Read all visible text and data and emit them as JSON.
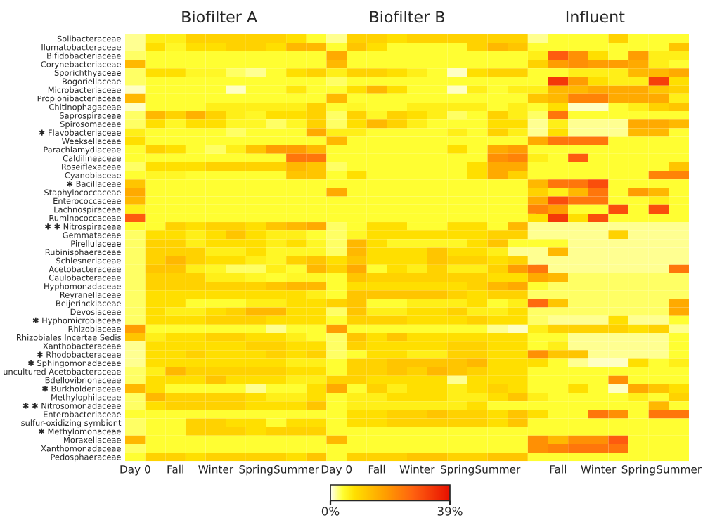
{
  "chart_data": {
    "type": "heatmap",
    "clim": [
      0,
      39
    ],
    "cticks": [
      {
        "value": 0,
        "label": "0%"
      },
      {
        "value": 39,
        "label": "39%"
      }
    ],
    "annotations": [
      "Biofilter A",
      "Biofilter B",
      "Influent"
    ],
    "categories": [
      "Day 0",
      null,
      "Fall",
      null,
      "Winter",
      null,
      "Spring",
      null,
      "Summer",
      null,
      "Day 0",
      null,
      "Fall",
      null,
      "Winter",
      null,
      "Spring",
      null,
      "Summer",
      null,
      null,
      "Fall",
      null,
      "Winter",
      null,
      "Spring",
      null,
      "Summer"
    ],
    "y_categories": [
      "Solibacteraceae",
      "Ilumatobacteraceae",
      "Bifidobacteriaceae",
      "Corynebacteriaceae",
      "Sporichthyaceae",
      "Bogoriellaceae",
      "Microbacteriaceae",
      "Propionibacteriaceae",
      "Chitinophagaceae",
      "Saprospiraceae",
      "Spirosomaceae",
      "✱ Flavobacteriaceae",
      "Weeksellaceae",
      "Parachlamydiaceae",
      "Caldilineaceae",
      "Roseiflexaceae",
      "Cyanobiaceae",
      "✱ Bacillaceae",
      "Staphylococcaceae",
      "Enterococcaceae",
      "Lachnospiraceae",
      "Ruminococcaceae",
      "✱ ✱ Nitrospiraceae",
      "Gemmataceae",
      "Pirellulaceae",
      "Rubinisphaeraceae",
      "Schlesneriaceae",
      "Acetobacteraceae",
      "Caulobacteraceae",
      "Hyphomonadaceae",
      "Reyranellaceae",
      "Beijerinckiaceae",
      "Devosiaceae",
      "✱ Hyphomicrobiaceae",
      "Rhizobiaceae",
      "Rhizobiales Incertae Sedis",
      "Xanthobacteraceae",
      "✱ Rhodobacteraceae",
      "✱ Sphingomonadaceae",
      "uncultured Acetobacteraceae",
      "Bdellovibrionaceae",
      "✱ Burkholderiaceae",
      "Methylophilaceae",
      "✱ ✱ Nitrosomonadaceae",
      "Enterobacteriaceae",
      "sulfur-oxidizing symbiont",
      "✱ Methylomonaceae",
      "Moraxellaceae",
      "Xanthomonadaceae",
      "Pedosphaeraceae"
    ],
    "cells": [
      [
        2,
        6,
        6,
        10,
        10,
        10,
        10,
        10,
        8,
        4,
        2,
        10,
        10,
        8,
        10,
        10,
        10,
        10,
        10,
        10,
        2,
        4,
        4,
        4,
        10,
        4,
        4,
        4
      ],
      [
        2,
        8,
        5,
        8,
        8,
        10,
        10,
        8,
        14,
        14,
        4,
        12,
        8,
        4,
        4,
        4,
        4,
        10,
        14,
        12,
        4,
        4,
        4,
        4,
        4,
        4,
        4,
        12
      ],
      [
        3,
        4,
        4,
        4,
        4,
        4,
        4,
        4,
        4,
        4,
        16,
        4,
        4,
        4,
        4,
        4,
        4,
        4,
        4,
        4,
        6,
        28,
        20,
        8,
        4,
        18,
        6,
        6
      ],
      [
        14,
        4,
        4,
        4,
        4,
        4,
        4,
        4,
        4,
        4,
        14,
        4,
        4,
        4,
        4,
        4,
        4,
        4,
        4,
        4,
        10,
        18,
        20,
        18,
        18,
        16,
        6,
        4
      ],
      [
        3,
        8,
        8,
        5,
        5,
        3,
        2,
        4,
        8,
        10,
        6,
        10,
        10,
        8,
        6,
        4,
        1,
        8,
        10,
        10,
        4,
        4,
        6,
        6,
        6,
        14,
        14,
        16
      ],
      [
        3,
        4,
        4,
        4,
        4,
        4,
        4,
        4,
        4,
        4,
        3,
        4,
        4,
        4,
        4,
        4,
        4,
        4,
        4,
        4,
        4,
        33,
        18,
        8,
        6,
        6,
        32,
        8
      ],
      [
        1,
        4,
        4,
        4,
        4,
        1,
        4,
        4,
        7,
        4,
        4,
        8,
        14,
        8,
        4,
        4,
        1,
        6,
        4,
        6,
        6,
        14,
        14,
        16,
        16,
        16,
        12,
        10
      ],
      [
        14,
        4,
        4,
        4,
        4,
        4,
        4,
        4,
        4,
        4,
        14,
        4,
        4,
        4,
        4,
        4,
        4,
        4,
        4,
        4,
        12,
        14,
        22,
        22,
        16,
        16,
        16,
        6
      ],
      [
        1,
        4,
        4,
        4,
        6,
        6,
        6,
        6,
        6,
        10,
        4,
        5,
        4,
        4,
        6,
        6,
        6,
        6,
        4,
        6,
        4,
        8,
        1,
        1,
        4,
        6,
        10,
        12
      ],
      [
        3,
        14,
        10,
        15,
        10,
        6,
        5,
        8,
        8,
        10,
        3,
        10,
        5,
        10,
        8,
        6,
        3,
        4,
        10,
        6,
        3,
        24,
        4,
        4,
        4,
        4,
        4,
        4
      ],
      [
        3,
        8,
        5,
        8,
        8,
        5,
        5,
        3,
        5,
        10,
        3,
        8,
        14,
        10,
        6,
        4,
        4,
        4,
        8,
        8,
        2,
        6,
        2,
        2,
        2,
        16,
        16,
        14
      ],
      [
        6,
        4,
        4,
        4,
        4,
        3,
        4,
        4,
        4,
        16,
        6,
        6,
        4,
        4,
        4,
        4,
        6,
        4,
        10,
        6,
        2,
        8,
        2,
        2,
        2,
        14,
        14,
        4
      ],
      [
        8,
        4,
        4,
        4,
        4,
        4,
        4,
        4,
        4,
        4,
        14,
        4,
        4,
        4,
        4,
        4,
        4,
        4,
        4,
        4,
        16,
        24,
        24,
        24,
        4,
        4,
        4,
        4
      ],
      [
        4,
        10,
        8,
        4,
        3,
        6,
        12,
        18,
        18,
        14,
        4,
        4,
        4,
        4,
        4,
        4,
        8,
        4,
        16,
        18,
        4,
        4,
        4,
        4,
        4,
        4,
        4,
        4
      ],
      [
        4,
        4,
        4,
        4,
        4,
        4,
        4,
        4,
        24,
        24,
        4,
        4,
        4,
        4,
        4,
        4,
        4,
        4,
        20,
        22,
        6,
        4,
        28,
        4,
        4,
        4,
        4,
        4
      ],
      [
        3,
        8,
        8,
        8,
        10,
        10,
        10,
        10,
        14,
        12,
        3,
        4,
        4,
        4,
        4,
        4,
        4,
        8,
        16,
        16,
        4,
        4,
        4,
        4,
        4,
        4,
        4,
        12
      ],
      [
        4,
        5,
        5,
        4,
        4,
        4,
        4,
        4,
        12,
        12,
        4,
        8,
        4,
        4,
        4,
        4,
        4,
        8,
        16,
        10,
        4,
        4,
        4,
        4,
        4,
        4,
        22,
        22
      ],
      [
        12,
        4,
        4,
        4,
        4,
        4,
        4,
        4,
        4,
        4,
        4,
        4,
        4,
        4,
        4,
        4,
        4,
        4,
        4,
        4,
        14,
        24,
        24,
        30,
        4,
        4,
        4,
        4
      ],
      [
        16,
        4,
        4,
        4,
        4,
        4,
        4,
        4,
        4,
        4,
        16,
        4,
        4,
        4,
        4,
        4,
        4,
        4,
        4,
        4,
        10,
        6,
        14,
        24,
        4,
        18,
        14,
        4
      ],
      [
        14,
        4,
        4,
        4,
        4,
        4,
        4,
        4,
        4,
        4,
        4,
        4,
        4,
        4,
        4,
        4,
        4,
        4,
        4,
        4,
        16,
        30,
        24,
        24,
        4,
        4,
        6,
        4
      ],
      [
        6,
        4,
        4,
        4,
        4,
        4,
        4,
        4,
        4,
        4,
        4,
        4,
        4,
        4,
        4,
        4,
        4,
        4,
        4,
        4,
        22,
        18,
        4,
        4,
        30,
        4,
        30,
        4
      ],
      [
        28,
        4,
        4,
        4,
        4,
        4,
        4,
        4,
        4,
        4,
        4,
        4,
        4,
        4,
        4,
        4,
        4,
        4,
        4,
        4,
        8,
        33,
        8,
        30,
        4,
        4,
        4,
        4
      ],
      [
        4,
        4,
        10,
        8,
        10,
        10,
        8,
        12,
        14,
        16,
        3,
        4,
        8,
        8,
        4,
        4,
        8,
        8,
        4,
        14,
        2,
        2,
        2,
        2,
        2,
        2,
        2,
        2
      ],
      [
        3,
        8,
        8,
        6,
        8,
        12,
        8,
        6,
        6,
        4,
        3,
        5,
        8,
        8,
        8,
        8,
        8,
        8,
        10,
        10,
        2,
        2,
        2,
        2,
        10,
        2,
        2,
        2
      ],
      [
        3,
        10,
        10,
        6,
        8,
        8,
        8,
        6,
        8,
        5,
        3,
        14,
        8,
        5,
        5,
        5,
        5,
        8,
        12,
        4,
        4,
        4,
        2,
        2,
        2,
        2,
        2,
        2
      ],
      [
        3,
        10,
        10,
        10,
        6,
        6,
        8,
        5,
        5,
        5,
        3,
        14,
        8,
        8,
        8,
        12,
        8,
        8,
        6,
        2,
        2,
        14,
        2,
        2,
        2,
        2,
        2,
        2
      ],
      [
        3,
        10,
        14,
        10,
        8,
        8,
        6,
        5,
        10,
        12,
        8,
        12,
        8,
        8,
        8,
        12,
        10,
        10,
        8,
        10,
        2,
        2,
        2,
        2,
        2,
        2,
        2,
        2
      ],
      [
        3,
        12,
        12,
        6,
        5,
        3,
        3,
        6,
        4,
        14,
        10,
        16,
        4,
        8,
        6,
        10,
        6,
        6,
        10,
        18,
        24,
        2,
        2,
        2,
        2,
        2,
        2,
        24
      ],
      [
        3,
        10,
        10,
        10,
        6,
        6,
        5,
        4,
        5,
        5,
        4,
        12,
        10,
        10,
        10,
        10,
        10,
        10,
        8,
        8,
        16,
        14,
        3,
        3,
        3,
        3,
        3,
        3
      ],
      [
        3,
        10,
        10,
        10,
        10,
        10,
        10,
        12,
        14,
        14,
        4,
        8,
        8,
        8,
        8,
        8,
        8,
        10,
        14,
        16,
        4,
        3,
        3,
        3,
        3,
        3,
        3,
        3
      ],
      [
        3,
        8,
        8,
        8,
        8,
        8,
        8,
        8,
        8,
        6,
        4,
        12,
        12,
        12,
        12,
        12,
        10,
        8,
        10,
        10,
        3,
        3,
        3,
        3,
        3,
        3,
        3,
        3
      ],
      [
        3,
        8,
        8,
        4,
        4,
        4,
        6,
        6,
        8,
        8,
        10,
        12,
        4,
        4,
        6,
        6,
        6,
        8,
        4,
        6,
        26,
        12,
        3,
        3,
        3,
        3,
        3,
        16
      ],
      [
        3,
        8,
        6,
        6,
        8,
        10,
        14,
        14,
        8,
        8,
        3,
        12,
        6,
        6,
        8,
        8,
        10,
        6,
        6,
        8,
        3,
        3,
        3,
        3,
        3,
        3,
        3,
        16
      ],
      [
        3,
        8,
        8,
        8,
        10,
        10,
        10,
        8,
        8,
        8,
        4,
        10,
        10,
        10,
        8,
        8,
        8,
        10,
        8,
        8,
        3,
        2,
        2,
        2,
        8,
        2,
        2,
        4
      ],
      [
        18,
        4,
        4,
        4,
        4,
        4,
        4,
        2,
        4,
        4,
        18,
        4,
        4,
        4,
        4,
        4,
        4,
        4,
        2,
        1,
        6,
        10,
        10,
        10,
        10,
        8,
        10,
        2
      ],
      [
        12,
        6,
        8,
        8,
        10,
        10,
        8,
        8,
        6,
        4,
        3,
        12,
        8,
        12,
        8,
        8,
        8,
        8,
        8,
        8,
        4,
        4,
        2,
        2,
        2,
        2,
        2,
        4
      ],
      [
        2,
        8,
        8,
        8,
        8,
        8,
        10,
        10,
        8,
        8,
        3,
        10,
        8,
        8,
        8,
        8,
        10,
        10,
        8,
        8,
        4,
        6,
        2,
        2,
        2,
        2,
        2,
        4
      ],
      [
        2,
        8,
        8,
        10,
        8,
        8,
        8,
        10,
        8,
        10,
        3,
        4,
        8,
        8,
        6,
        6,
        10,
        10,
        8,
        8,
        20,
        12,
        12,
        2,
        2,
        2,
        2,
        4
      ],
      [
        2,
        8,
        8,
        8,
        8,
        8,
        8,
        8,
        6,
        6,
        4,
        10,
        10,
        12,
        12,
        12,
        12,
        14,
        8,
        8,
        8,
        4,
        2,
        1,
        1,
        8,
        4,
        6
      ],
      [
        3,
        6,
        14,
        10,
        10,
        10,
        10,
        10,
        8,
        8,
        4,
        10,
        10,
        12,
        10,
        14,
        12,
        10,
        8,
        8,
        4,
        4,
        4,
        4,
        4,
        4,
        4,
        4
      ],
      [
        3,
        8,
        8,
        8,
        12,
        8,
        8,
        8,
        6,
        6,
        10,
        10,
        8,
        8,
        8,
        8,
        2,
        8,
        8,
        8,
        4,
        4,
        4,
        4,
        20,
        4,
        4,
        4
      ],
      [
        14,
        8,
        4,
        4,
        4,
        4,
        2,
        4,
        4,
        8,
        16,
        4,
        10,
        6,
        8,
        8,
        6,
        8,
        10,
        8,
        4,
        4,
        8,
        4,
        1,
        16,
        12,
        8
      ],
      [
        3,
        14,
        10,
        10,
        10,
        10,
        8,
        6,
        6,
        8,
        4,
        6,
        6,
        8,
        8,
        8,
        6,
        6,
        8,
        12,
        6,
        4,
        4,
        4,
        4,
        6,
        4,
        10
      ],
      [
        3,
        8,
        10,
        10,
        10,
        10,
        8,
        8,
        8,
        12,
        4,
        6,
        6,
        6,
        6,
        6,
        6,
        8,
        4,
        4,
        4,
        4,
        4,
        4,
        4,
        4,
        14,
        4
      ],
      [
        4,
        4,
        4,
        4,
        4,
        4,
        4,
        4,
        4,
        4,
        4,
        8,
        8,
        10,
        10,
        12,
        10,
        10,
        8,
        12,
        8,
        4,
        4,
        24,
        20,
        4,
        24,
        24
      ],
      [
        3,
        4,
        4,
        10,
        10,
        8,
        8,
        4,
        8,
        8,
        4,
        8,
        8,
        10,
        10,
        10,
        10,
        10,
        8,
        12,
        4,
        4,
        4,
        4,
        4,
        4,
        4,
        4
      ],
      [
        3,
        4,
        4,
        10,
        10,
        10,
        8,
        10,
        10,
        10,
        4,
        4,
        4,
        4,
        4,
        4,
        4,
        4,
        4,
        4,
        4,
        4,
        4,
        4,
        4,
        4,
        4,
        4
      ],
      [
        14,
        4,
        4,
        4,
        4,
        4,
        4,
        4,
        4,
        4,
        14,
        4,
        4,
        4,
        4,
        4,
        4,
        4,
        4,
        4,
        20,
        14,
        20,
        20,
        28,
        4,
        4,
        4
      ],
      [
        3,
        4,
        4,
        4,
        4,
        4,
        4,
        4,
        4,
        4,
        4,
        4,
        4,
        4,
        4,
        4,
        4,
        4,
        4,
        4,
        20,
        22,
        24,
        24,
        24,
        4,
        4,
        4
      ],
      [
        4,
        10,
        10,
        8,
        10,
        10,
        10,
        10,
        8,
        12,
        4,
        10,
        10,
        10,
        12,
        12,
        10,
        10,
        12,
        12,
        4,
        4,
        4,
        4,
        4,
        4,
        4,
        4
      ]
    ]
  }
}
